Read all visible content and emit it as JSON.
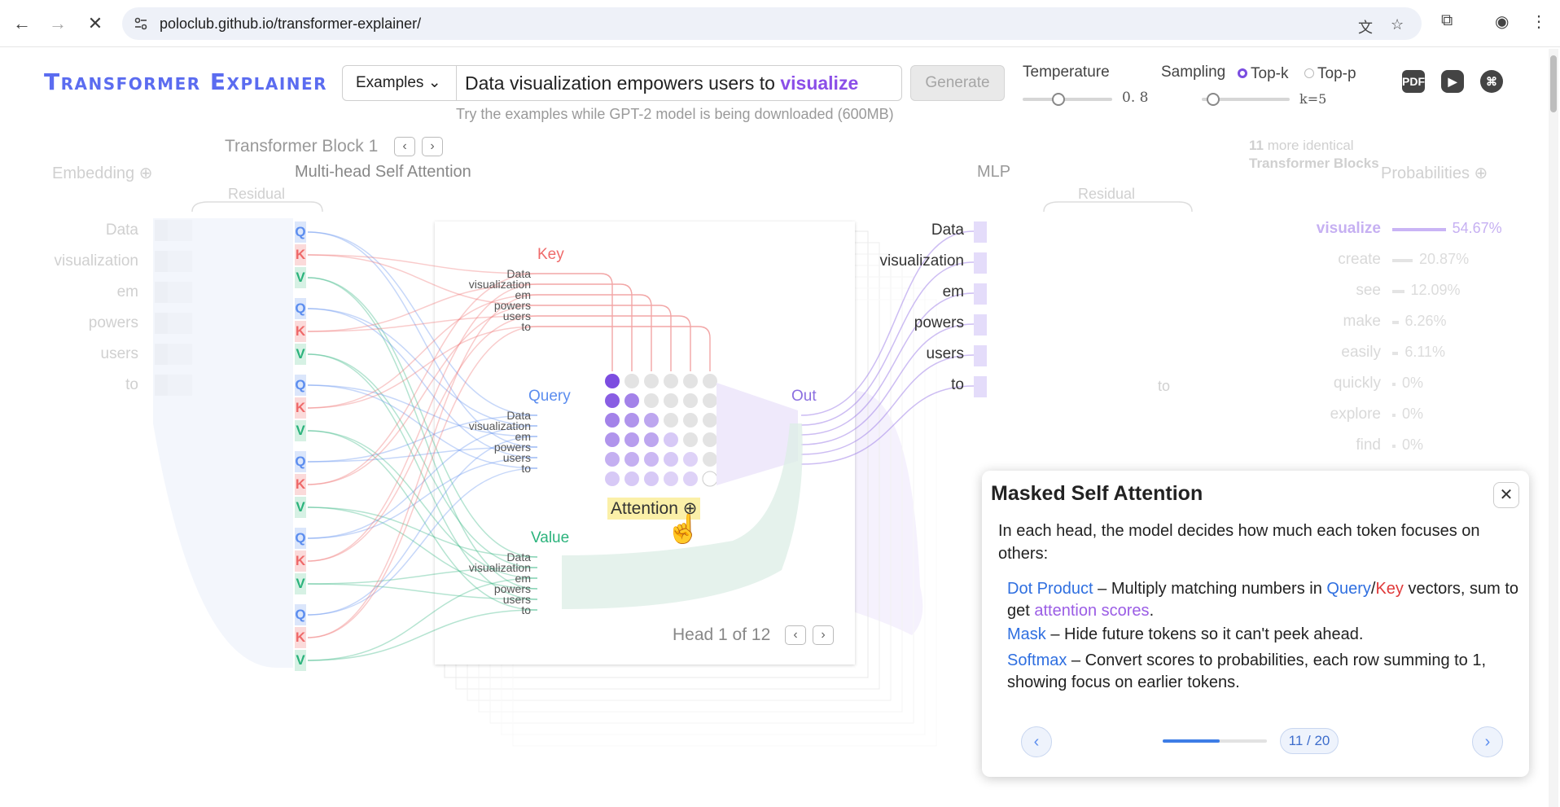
{
  "browser": {
    "url": "poloclub.github.io/transformer-explainer/"
  },
  "header": {
    "logo": "Transformer Explainer",
    "examples_label": "Examples ⌄",
    "prompt_text": "Data visualization empowers users to ",
    "prompt_predicted": "visualize",
    "generate_label": "Generate",
    "hint": "Try the examples while GPT-2 model is being downloaded (600MB)",
    "temperature_label": "Temperature",
    "temperature_value": "0. 8",
    "temperature_level": 0.4,
    "sampling_label": "Sampling",
    "topk_label": "Top-k",
    "topp_label": "Top-p",
    "k_value": "k=5",
    "icons": [
      "pdf-icon",
      "youtube-icon",
      "github-icon"
    ]
  },
  "sections": {
    "block_title": "Transformer Block 1",
    "embedding": "Embedding",
    "residual_left": "Residual",
    "mhsa": "Multi-head Self Attention",
    "mlp": "MLP",
    "residual_right": "Residual",
    "more_blocks_count": "11",
    "more_blocks_text": "more identical",
    "more_blocks_bold": "Transformer Blocks",
    "probabilities": "Probabilities"
  },
  "tokens": [
    "Data",
    "visualization",
    "em",
    "powers",
    "users",
    "to"
  ],
  "residual_right_token": "to",
  "attention": {
    "key_label": "Key",
    "query_label": "Query",
    "value_label": "Value",
    "out_label": "Out",
    "attention_label": "Attention",
    "head_text": "Head 1 of 12"
  },
  "probabilities": [
    {
      "token": "visualize",
      "pct": "54.67%",
      "value": 54.67
    },
    {
      "token": "create",
      "pct": "20.87%",
      "value": 20.87
    },
    {
      "token": "see",
      "pct": "12.09%",
      "value": 12.09
    },
    {
      "token": "make",
      "pct": "6.26%",
      "value": 6.26
    },
    {
      "token": "easily",
      "pct": "6.11%",
      "value": 6.11
    },
    {
      "token": "quickly",
      "pct": "0%",
      "value": 0
    },
    {
      "token": "explore",
      "pct": "0%",
      "value": 0
    },
    {
      "token": "find",
      "pct": "0%",
      "value": 0
    }
  ],
  "popup": {
    "title": "Masked Self Attention",
    "intro": "In each head, the model decides how much each token focuses on others:",
    "dot_term": "Dot Product",
    "dot_a": " – Multiply matching numbers in ",
    "dot_query": "Query",
    "dot_slash": "/",
    "dot_key": "Key",
    "dot_b": " vectors, sum to get ",
    "dot_scores": "attention scores",
    "dot_c": ".",
    "mask_term": "Mask",
    "mask_text": " – Hide future tokens so it can't peek ahead.",
    "softmax_term": "Softmax",
    "softmax_text": " – Convert scores to probabilities, each row summing to 1, showing focus on earlier tokens.",
    "step": "11 / 20",
    "progress": 0.55,
    "close": "✕",
    "prev": "‹",
    "next": "›"
  }
}
